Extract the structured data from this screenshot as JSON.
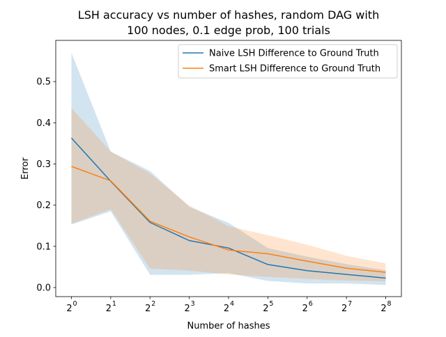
{
  "chart_data": {
    "type": "line",
    "title_line1": "LSH accuracy vs number of hashes, random DAG with",
    "title_line2": "100 nodes, 0.1 edge prob, 100 trials",
    "xlabel": "Number of hashes",
    "ylabel": "Error",
    "x_scale": "log2",
    "x": [
      1,
      2,
      4,
      8,
      16,
      32,
      64,
      128,
      256
    ],
    "x_tick_base": "2",
    "x_tick_exponents": [
      "0",
      "1",
      "2",
      "3",
      "4",
      "5",
      "6",
      "7",
      "8"
    ],
    "ylim": [
      -0.022,
      0.6
    ],
    "y_ticks": [
      0.0,
      0.1,
      0.2,
      0.3,
      0.4,
      0.5
    ],
    "y_tick_labels": [
      "0.0",
      "0.1",
      "0.2",
      "0.3",
      "0.4",
      "0.5"
    ],
    "grid": false,
    "legend_position": "upper-right",
    "series": [
      {
        "name": "Naive LSH Difference to Ground Truth",
        "color": "#1f77b4",
        "values": [
          0.363,
          0.258,
          0.158,
          0.114,
          0.096,
          0.056,
          0.041,
          0.032,
          0.023
        ],
        "lower": [
          0.153,
          0.185,
          0.031,
          0.031,
          0.035,
          0.016,
          0.01,
          0.01,
          0.006
        ],
        "upper": [
          0.57,
          0.33,
          0.283,
          0.196,
          0.157,
          0.096,
          0.075,
          0.057,
          0.042
        ]
      },
      {
        "name": "Smart LSH Difference to Ground Truth",
        "color": "#ff7f0e",
        "values": [
          0.294,
          0.259,
          0.161,
          0.123,
          0.091,
          0.082,
          0.064,
          0.047,
          0.037
        ],
        "lower": [
          0.155,
          0.19,
          0.046,
          0.041,
          0.032,
          0.026,
          0.021,
          0.017,
          0.015
        ],
        "upper": [
          0.436,
          0.33,
          0.277,
          0.199,
          0.149,
          0.127,
          0.104,
          0.077,
          0.059
        ]
      }
    ]
  }
}
